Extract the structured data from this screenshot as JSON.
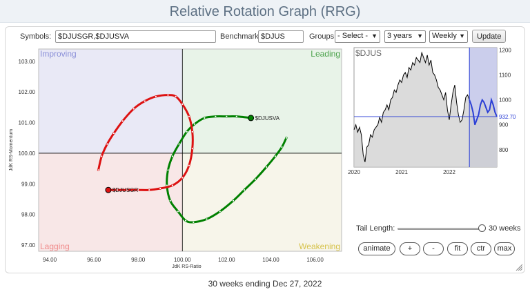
{
  "title": "Relative Rotation Graph (RRG)",
  "toolbar": {
    "symbols_label": "Symbols:",
    "symbols_value": "$DJUSGR,$DJUSVA",
    "benchmark_label": "Benchmark:",
    "benchmark_value": "$DJUS",
    "groups_label": "Groups:",
    "groups_value": "- Select -",
    "period_value": "3 years",
    "frequency_value": "Weekly",
    "update_label": "Update"
  },
  "controls": {
    "tail_label": "Tail Length:",
    "tail_value": "30 weeks",
    "tail_fraction": 1.0,
    "buttons": {
      "animate": "animate",
      "plus": "+",
      "minus": "-",
      "fit": "fit",
      "ctr": "ctr",
      "max": "max"
    }
  },
  "footer": "30 weeks ending Dec 27, 2022",
  "colors": {
    "improving": "#e9e9f6",
    "leading": "#e8f3e8",
    "lagging": "#f8e7e7",
    "weakening": "#f7f5ea",
    "green": "#008000",
    "red": "#dd1111",
    "blue": "#2b3fd6"
  },
  "chart_data": [
    {
      "type": "scatter",
      "name": "rrg",
      "xlabel": "JdK RS-Ratio",
      "ylabel": "JdK RS-Momentum",
      "xlim": [
        93.5,
        107.2
      ],
      "ylim": [
        96.8,
        103.4
      ],
      "xticks": [
        "94.00",
        "96.00",
        "98.00",
        "100.00",
        "102.00",
        "104.00",
        "106.00"
      ],
      "yticks": [
        "97.00",
        "98.00",
        "99.00",
        "100.00",
        "101.00",
        "102.00",
        "103.00"
      ],
      "quadrants": {
        "improving": "Improving",
        "leading": "Leading",
        "lagging": "Lagging",
        "weakening": "Weakening"
      },
      "series": [
        {
          "name": "$DJUSVA",
          "color": "#008000",
          "points": [
            [
              104.7,
              100.5
            ],
            [
              104.5,
              100.2
            ],
            [
              104.2,
              99.9
            ],
            [
              103.8,
              99.55
            ],
            [
              103.3,
              99.15
            ],
            [
              102.8,
              98.8
            ],
            [
              102.3,
              98.45
            ],
            [
              101.7,
              98.1
            ],
            [
              101.1,
              97.85
            ],
            [
              100.5,
              97.75
            ],
            [
              100.15,
              97.8
            ],
            [
              99.8,
              98.1
            ],
            [
              99.45,
              98.45
            ],
            [
              99.3,
              98.95
            ],
            [
              99.35,
              99.45
            ],
            [
              99.55,
              99.9
            ],
            [
              99.85,
              100.3
            ],
            [
              100.2,
              100.7
            ],
            [
              100.55,
              100.95
            ],
            [
              101.0,
              101.15
            ],
            [
              101.5,
              101.2
            ],
            [
              102.0,
              101.2
            ],
            [
              102.45,
              101.2
            ],
            [
              103.1,
              101.15
            ]
          ]
        },
        {
          "name": "$DJUSGR",
          "color": "#dd1111",
          "points": [
            [
              96.2,
              99.45
            ],
            [
              96.35,
              99.9
            ],
            [
              96.6,
              100.3
            ],
            [
              96.9,
              100.65
            ],
            [
              97.3,
              101.05
            ],
            [
              97.8,
              101.45
            ],
            [
              98.3,
              101.7
            ],
            [
              98.8,
              101.85
            ],
            [
              99.35,
              101.9
            ],
            [
              99.7,
              101.85
            ],
            [
              100.0,
              101.6
            ],
            [
              100.3,
              101.2
            ],
            [
              100.45,
              100.7
            ],
            [
              100.45,
              100.15
            ],
            [
              100.3,
              99.6
            ],
            [
              100.0,
              99.2
            ],
            [
              99.55,
              98.95
            ],
            [
              99.0,
              98.85
            ],
            [
              98.5,
              98.8
            ],
            [
              98.0,
              98.8
            ],
            [
              97.5,
              98.8
            ],
            [
              97.05,
              98.8
            ],
            [
              96.65,
              98.8
            ]
          ]
        }
      ]
    },
    {
      "type": "line",
      "name": "benchmark",
      "title": "$DJUS",
      "x_ticks": [
        "2020",
        "2021",
        "2022"
      ],
      "ylim": [
        730,
        1210
      ],
      "yticks": [
        "800",
        "900",
        "1000",
        "1100",
        "1200"
      ],
      "last_value": "932.70",
      "x": [
        0,
        2,
        4,
        6,
        8,
        10,
        12,
        14,
        16,
        18,
        20,
        22,
        24,
        26,
        28,
        30,
        32,
        34,
        36,
        38,
        40,
        42,
        44,
        46,
        48,
        50,
        52,
        54,
        56,
        58,
        60,
        62,
        64,
        66,
        68,
        70,
        72,
        74,
        76,
        78,
        80,
        82,
        84,
        86,
        88,
        90,
        92,
        94,
        96,
        98,
        100,
        102,
        104,
        106,
        108,
        110,
        112,
        114,
        116,
        118,
        120,
        122,
        124,
        126,
        128,
        130,
        132,
        134,
        136,
        138,
        140,
        142,
        144,
        146,
        148,
        150,
        152,
        154,
        156
      ],
      "values": [
        880,
        900,
        870,
        890,
        860,
        780,
        750,
        810,
        820,
        860,
        850,
        880,
        890,
        900,
        930,
        910,
        950,
        960,
        980,
        960,
        1000,
        1010,
        1040,
        1030,
        1060,
        1080,
        1070,
        1100,
        1110,
        1090,
        1130,
        1120,
        1150,
        1140,
        1170,
        1160,
        1150,
        1190,
        1170,
        1150,
        1180,
        1140,
        1160,
        1110,
        1100,
        1080,
        1050,
        1040,
        1020,
        1000,
        1030,
        960,
        920,
        980,
        1030,
        1060,
        990,
        940,
        910,
        920,
        960,
        1010,
        1020,
        1000,
        980,
        950,
        900,
        920,
        940,
        980,
        1000,
        990,
        970,
        950,
        960,
        1000,
        980,
        950,
        933
      ],
      "highlight_start": 126
    }
  ]
}
